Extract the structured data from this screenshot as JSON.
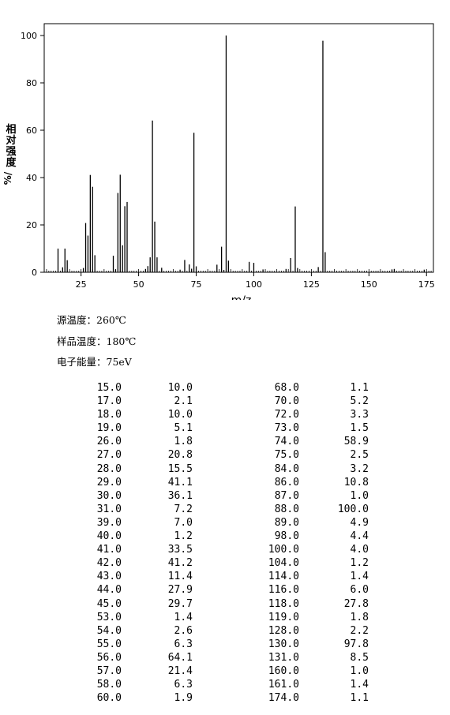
{
  "chart_data": {
    "type": "bar",
    "xlabel": "m/z",
    "ylabel_chars": [
      "相",
      "对",
      "强",
      "度"
    ],
    "ylabel_unit": "%/",
    "xlim": [
      9,
      178
    ],
    "ylim": [
      0,
      105
    ],
    "xticks": [
      "25",
      "50",
      "75",
      "100",
      "125",
      "150",
      "175"
    ],
    "yticks": [
      "0",
      "20",
      "40",
      "60",
      "80",
      "100"
    ],
    "peaks": [
      {
        "mz": 15.0,
        "intensity": 10.0,
        "mz_label": "15.0",
        "int_label": "10.0"
      },
      {
        "mz": 17.0,
        "intensity": 2.1,
        "mz_label": "17.0",
        "int_label": "2.1"
      },
      {
        "mz": 18.0,
        "intensity": 10.0,
        "mz_label": "18.0",
        "int_label": "10.0"
      },
      {
        "mz": 19.0,
        "intensity": 5.1,
        "mz_label": "19.0",
        "int_label": "5.1"
      },
      {
        "mz": 26.0,
        "intensity": 1.8,
        "mz_label": "26.0",
        "int_label": "1.8"
      },
      {
        "mz": 27.0,
        "intensity": 20.8,
        "mz_label": "27.0",
        "int_label": "20.8"
      },
      {
        "mz": 28.0,
        "intensity": 15.5,
        "mz_label": "28.0",
        "int_label": "15.5"
      },
      {
        "mz": 29.0,
        "intensity": 41.1,
        "mz_label": "29.0",
        "int_label": "41.1"
      },
      {
        "mz": 30.0,
        "intensity": 36.1,
        "mz_label": "30.0",
        "int_label": "36.1"
      },
      {
        "mz": 31.0,
        "intensity": 7.2,
        "mz_label": "31.0",
        "int_label": "7.2"
      },
      {
        "mz": 39.0,
        "intensity": 7.0,
        "mz_label": "39.0",
        "int_label": "7.0"
      },
      {
        "mz": 40.0,
        "intensity": 1.2,
        "mz_label": "40.0",
        "int_label": "1.2"
      },
      {
        "mz": 41.0,
        "intensity": 33.5,
        "mz_label": "41.0",
        "int_label": "33.5"
      },
      {
        "mz": 42.0,
        "intensity": 41.2,
        "mz_label": "42.0",
        "int_label": "41.2"
      },
      {
        "mz": 43.0,
        "intensity": 11.4,
        "mz_label": "43.0",
        "int_label": "11.4"
      },
      {
        "mz": 44.0,
        "intensity": 27.9,
        "mz_label": "44.0",
        "int_label": "27.9"
      },
      {
        "mz": 45.0,
        "intensity": 29.7,
        "mz_label": "45.0",
        "int_label": "29.7"
      },
      {
        "mz": 53.0,
        "intensity": 1.4,
        "mz_label": "53.0",
        "int_label": "1.4"
      },
      {
        "mz": 54.0,
        "intensity": 2.6,
        "mz_label": "54.0",
        "int_label": "2.6"
      },
      {
        "mz": 55.0,
        "intensity": 6.3,
        "mz_label": "55.0",
        "int_label": "6.3"
      },
      {
        "mz": 56.0,
        "intensity": 64.1,
        "mz_label": "56.0",
        "int_label": "64.1"
      },
      {
        "mz": 57.0,
        "intensity": 21.4,
        "mz_label": "57.0",
        "int_label": "21.4"
      },
      {
        "mz": 58.0,
        "intensity": 6.3,
        "mz_label": "58.0",
        "int_label": "6.3"
      },
      {
        "mz": 60.0,
        "intensity": 1.9,
        "mz_label": "60.0",
        "int_label": "1.9"
      },
      {
        "mz": 68.0,
        "intensity": 1.1,
        "mz_label": "68.0",
        "int_label": "1.1"
      },
      {
        "mz": 70.0,
        "intensity": 5.2,
        "mz_label": "70.0",
        "int_label": "5.2"
      },
      {
        "mz": 72.0,
        "intensity": 3.3,
        "mz_label": "72.0",
        "int_label": "3.3"
      },
      {
        "mz": 73.0,
        "intensity": 1.5,
        "mz_label": "73.0",
        "int_label": "1.5"
      },
      {
        "mz": 74.0,
        "intensity": 58.9,
        "mz_label": "74.0",
        "int_label": "58.9"
      },
      {
        "mz": 75.0,
        "intensity": 2.5,
        "mz_label": "75.0",
        "int_label": "2.5"
      },
      {
        "mz": 84.0,
        "intensity": 3.2,
        "mz_label": "84.0",
        "int_label": "3.2"
      },
      {
        "mz": 86.0,
        "intensity": 10.8,
        "mz_label": "86.0",
        "int_label": "10.8"
      },
      {
        "mz": 87.0,
        "intensity": 1.0,
        "mz_label": "87.0",
        "int_label": "1.0"
      },
      {
        "mz": 88.0,
        "intensity": 100.0,
        "mz_label": "88.0",
        "int_label": "100.0"
      },
      {
        "mz": 89.0,
        "intensity": 4.9,
        "mz_label": "89.0",
        "int_label": "4.9"
      },
      {
        "mz": 98.0,
        "intensity": 4.4,
        "mz_label": "98.0",
        "int_label": "4.4"
      },
      {
        "mz": 100.0,
        "intensity": 4.0,
        "mz_label": "100.0",
        "int_label": "4.0"
      },
      {
        "mz": 104.0,
        "intensity": 1.2,
        "mz_label": "104.0",
        "int_label": "1.2"
      },
      {
        "mz": 114.0,
        "intensity": 1.4,
        "mz_label": "114.0",
        "int_label": "1.4"
      },
      {
        "mz": 116.0,
        "intensity": 6.0,
        "mz_label": "116.0",
        "int_label": "6.0"
      },
      {
        "mz": 118.0,
        "intensity": 27.8,
        "mz_label": "118.0",
        "int_label": "27.8"
      },
      {
        "mz": 119.0,
        "intensity": 1.8,
        "mz_label": "119.0",
        "int_label": "1.8"
      },
      {
        "mz": 128.0,
        "intensity": 2.2,
        "mz_label": "128.0",
        "int_label": "2.2"
      },
      {
        "mz": 130.0,
        "intensity": 97.8,
        "mz_label": "130.0",
        "int_label": "97.8"
      },
      {
        "mz": 131.0,
        "intensity": 8.5,
        "mz_label": "131.0",
        "int_label": "8.5"
      },
      {
        "mz": 160.0,
        "intensity": 1.0,
        "mz_label": "160.0",
        "int_label": "1.0"
      },
      {
        "mz": 161.0,
        "intensity": 1.4,
        "mz_label": "161.0",
        "int_label": "1.4"
      },
      {
        "mz": 174.0,
        "intensity": 1.1,
        "mz_label": "174.0",
        "int_label": "1.1"
      }
    ]
  },
  "conditions": {
    "source_temp": "源温度：260℃",
    "sample_temp": "样品温度：180℃",
    "electron_energy": "电子能量：75eV"
  }
}
